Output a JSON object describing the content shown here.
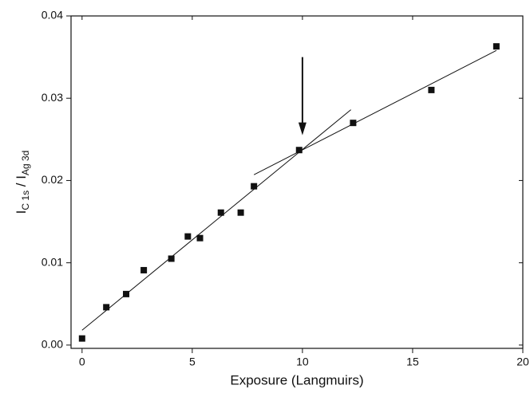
{
  "chart_data": {
    "type": "scatter",
    "xlabel": "Exposure (Langmuirs)",
    "ylabel_parts": [
      {
        "text": "I",
        "sub": false
      },
      {
        "text": "C 1s",
        "sub": true
      },
      {
        "text": " / I",
        "sub": false
      },
      {
        "text": "Ag 3d",
        "sub": true
      }
    ],
    "xlim": [
      -0.5,
      20
    ],
    "ylim": [
      -0.0004,
      0.04
    ],
    "xticks": [
      0,
      5,
      10,
      15,
      20
    ],
    "yticks": [
      {
        "value": 0,
        "label": "0.00"
      },
      0.01,
      0.02,
      0.03,
      0.04
    ],
    "color": "#111111",
    "series": [
      {
        "x": [
          0,
          1.1,
          2,
          2.8,
          4.05,
          4.8,
          5.35,
          6.3,
          7.2,
          7.8,
          9.85,
          12.3,
          15.85,
          18.8
        ],
        "values": [
          0.0008,
          0.0046,
          0.0062,
          0.0091,
          0.0105,
          0.0132,
          0.013,
          0.0161,
          0.0161,
          0.0193,
          0.0237,
          0.027,
          0.031,
          0.0363
        ]
      }
    ],
    "fit_lines": [
      {
        "x": [
          0,
          12.2
        ],
        "y": [
          0.0018,
          0.0286
        ]
      },
      {
        "x": [
          7.8,
          18.8
        ],
        "y": [
          0.0207,
          0.0358
        ]
      }
    ],
    "arrow": {
      "x": 10,
      "y": [
        0.035,
        0.0255
      ]
    }
  }
}
